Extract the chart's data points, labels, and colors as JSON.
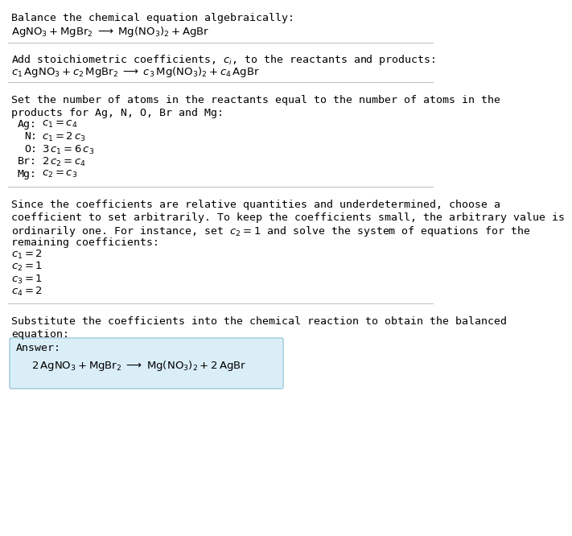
{
  "bg_color": "#ffffff",
  "text_color": "#000000",
  "section1_header": "Balance the chemical equation algebraically:",
  "section1_eq": "$\\mathrm{AgNO_3 + MgBr_2 \\;\\longrightarrow\\; Mg(NO_3)_2 + AgBr}$",
  "section2_header": "Add stoichiometric coefficients, $c_i$, to the reactants and products:",
  "section2_eq": "$c_1\\,\\mathrm{AgNO_3} + c_2\\,\\mathrm{MgBr_2} \\;\\longrightarrow\\; c_3\\,\\mathrm{Mg(NO_3)_2} + c_4\\,\\mathrm{AgBr}$",
  "section3_header_line1": "Set the number of atoms in the reactants equal to the number of atoms in the",
  "section3_header_line2": "products for Ag, N, O, Br and Mg:",
  "section3_rows": [
    [
      "Ag:",
      "$c_1 = c_4$"
    ],
    [
      "N:",
      "$c_1 = 2\\,c_3$"
    ],
    [
      "O:",
      "$3\\,c_1 = 6\\,c_3$"
    ],
    [
      "Br:",
      "$2\\,c_2 = c_4$"
    ],
    [
      "Mg:",
      "$c_2 = c_3$"
    ]
  ],
  "section4_line1": "Since the coefficients are relative quantities and underdetermined, choose a",
  "section4_line2": "coefficient to set arbitrarily. To keep the coefficients small, the arbitrary value is",
  "section4_line3": "ordinarily one. For instance, set $c_2 = 1$ and solve the system of equations for the",
  "section4_line4": "remaining coefficients:",
  "section4_rows": [
    "$c_1 = 2$",
    "$c_2 = 1$",
    "$c_3 = 1$",
    "$c_4 = 2$"
  ],
  "section5_line1": "Substitute the coefficients into the chemical reaction to obtain the balanced",
  "section5_line2": "equation:",
  "answer_label": "Answer:",
  "answer_eq": "$2\\,\\mathrm{AgNO_3 + MgBr_2 \\;\\longrightarrow\\; Mg(NO_3)_2 + 2\\,AgBr}$",
  "answer_box_color": "#daeef8",
  "answer_box_edge": "#9ec8dc",
  "font_size_body": 9.5,
  "font_size_eq": 9.5,
  "font_family": "DejaVu Sans Mono"
}
